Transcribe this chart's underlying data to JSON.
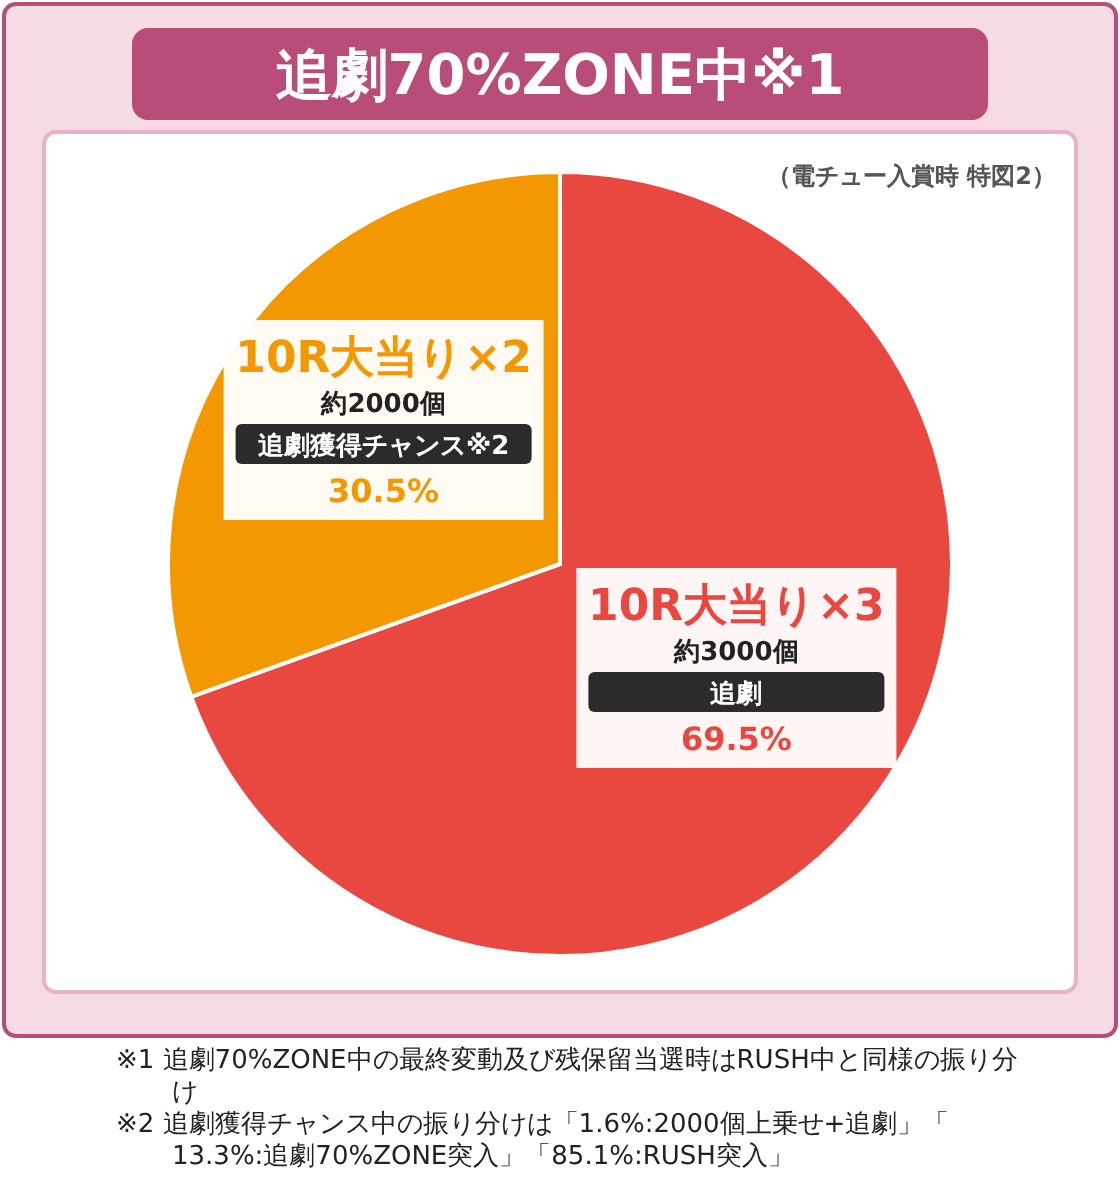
{
  "chart_data": {
    "type": "pie",
    "title": "追劇70%ZONE中※1",
    "subtitle": "（電チュー入賞時 特図2）",
    "categories": [
      "10R大当り×3",
      "10R大当り×2"
    ],
    "values": [
      69.5,
      30.5
    ],
    "colors": [
      "#e8483f",
      "#f39800"
    ],
    "value_labels": [
      "69.5%",
      "30.5%"
    ],
    "annotations": [
      "約3000個",
      "追劇",
      "約2000個",
      "追劇獲得チャンス※2",
      "※1 追劇70%ZONE中の最終変動及び残保留当選時はRUSH中と同様の振り分け",
      "※2 追劇獲得チャンス中の振り分けは「1.6%:2000個上乗せ+追劇」「13.3%:追劇70%ZONE突入」「85.1%:RUSH突入」"
    ],
    "data_labels": false
  }
}
